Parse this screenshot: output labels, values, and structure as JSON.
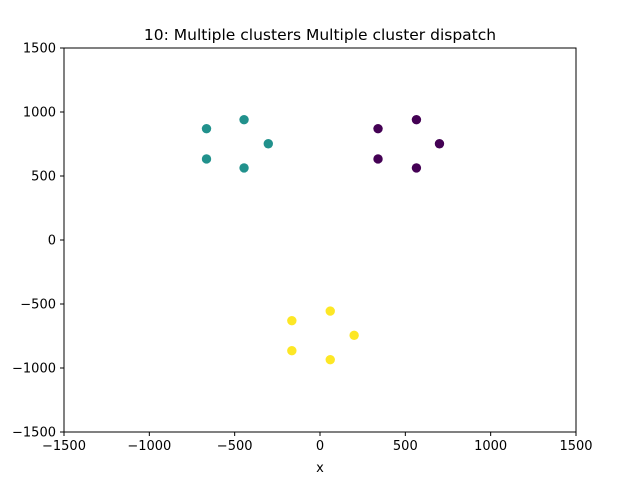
{
  "chart_data": {
    "type": "scatter",
    "title": "10: Multiple clusters Multiple cluster dispatch",
    "xlabel": "x",
    "ylabel": "",
    "xlim": [
      -1500,
      1500
    ],
    "ylim": [
      -1500,
      1500
    ],
    "xticks": [
      -1500,
      -1000,
      -500,
      0,
      500,
      1000,
      1500
    ],
    "yticks": [
      -1500,
      -1000,
      -500,
      0,
      500,
      1000,
      1500
    ],
    "xtick_labels": [
      "−1500",
      "−1000",
      "−500",
      "0",
      "500",
      "1000",
      "1500"
    ],
    "ytick_labels": [
      "−1500",
      "−1000",
      "−500",
      "0",
      "500",
      "1000",
      "1500"
    ],
    "grid": false,
    "legend": "none",
    "series": [
      {
        "color": "#440154",
        "points": [
          [
            565,
            940
          ],
          [
            700,
            752
          ],
          [
            340,
            870
          ],
          [
            340,
            633
          ],
          [
            565,
            563
          ]
        ]
      },
      {
        "color": "#21918c",
        "points": [
          [
            -445,
            940
          ],
          [
            -303,
            752
          ],
          [
            -665,
            870
          ],
          [
            -665,
            633
          ],
          [
            -445,
            563
          ]
        ]
      },
      {
        "color": "#fde725",
        "points": [
          [
            60,
            -555
          ],
          [
            200,
            -745
          ],
          [
            -165,
            -630
          ],
          [
            -165,
            -865
          ],
          [
            60,
            -935
          ]
        ]
      }
    ]
  }
}
